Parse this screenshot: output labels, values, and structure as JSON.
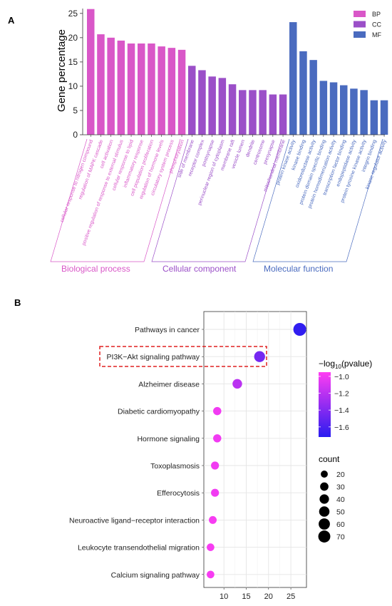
{
  "colors": {
    "BP": "#d957c8",
    "CC": "#9b4fc8",
    "MF": "#4a6bbf",
    "grid": "#e5e5e5",
    "panel_border": "#333333",
    "highlight": "#e02020"
  },
  "chart_data": [
    {
      "type": "bar",
      "panel_label": "A",
      "ylabel": "Gene percentage",
      "ylim": [
        0,
        26
      ],
      "yticks": [
        0,
        5,
        10,
        15,
        20,
        25
      ],
      "legend": {
        "placement": "top-right",
        "entries": [
          {
            "name": "BP",
            "color": "#d957c8"
          },
          {
            "name": "CC",
            "color": "#9b4fc8"
          },
          {
            "name": "MF",
            "color": "#4a6bbf"
          }
        ]
      },
      "groups": [
        {
          "key": "BP",
          "label": "Biological process",
          "color": "#d957c8",
          "bars": [
            {
              "term": "cellular response to nitrogen compound",
              "value": 25.9
            },
            {
              "term": "regulation of MAPK cascade",
              "value": 20.7
            },
            {
              "term": "cell activation",
              "value": 20.0
            },
            {
              "term": "positive regulation of response to external stimulus",
              "value": 19.4
            },
            {
              "term": "cellular response to lipid",
              "value": 18.8
            },
            {
              "term": "inflammatory response",
              "value": 18.8
            },
            {
              "term": "cell population proliferation",
              "value": 18.8
            },
            {
              "term": "regulation of hormone levels",
              "value": 18.2
            },
            {
              "term": "circulatory system process",
              "value": 17.9
            },
            {
              "term": "phosphorylation",
              "value": 17.5
            }
          ]
        },
        {
          "key": "CC",
          "label": "Cellular component",
          "color": "#9b4fc8",
          "bars": [
            {
              "term": "side of membrane",
              "value": 14.2
            },
            {
              "term": "receptor complex",
              "value": 13.3
            },
            {
              "term": "postsynapse",
              "value": 12.0
            },
            {
              "term": "perinuclear region of cytoplasm",
              "value": 11.7
            },
            {
              "term": "membrane raft",
              "value": 10.4
            },
            {
              "term": "vesicle lumen",
              "value": 9.2
            },
            {
              "term": "dendrite",
              "value": 9.2
            },
            {
              "term": "centrosome",
              "value": 9.2
            },
            {
              "term": "presynapse",
              "value": 8.3
            },
            {
              "term": "mitochondrial membrane",
              "value": 8.3
            }
          ]
        },
        {
          "key": "MF",
          "label": "Molecular function",
          "color": "#4a6bbf",
          "bars": [
            {
              "term": "protein kinase activity",
              "value": 23.2
            },
            {
              "term": "kinase binding",
              "value": 17.2
            },
            {
              "term": "oxidoreductase activity",
              "value": 15.4
            },
            {
              "term": "protein domain specific binding",
              "value": 11.1
            },
            {
              "term": "protein homodimerization activity",
              "value": 10.8
            },
            {
              "term": "transcription factor binding",
              "value": 10.2
            },
            {
              "term": "endopeptidase activity",
              "value": 9.5
            },
            {
              "term": "protein tyrosine kinase activity",
              "value": 9.2
            },
            {
              "term": "integrin binding",
              "value": 7.1
            },
            {
              "term": "kinase regulator activity",
              "value": 7.1
            }
          ]
        }
      ]
    },
    {
      "type": "scatter",
      "panel_label": "B",
      "xlim": [
        5.5,
        28.5
      ],
      "xticks": [
        10,
        15,
        20,
        25
      ],
      "grid": true,
      "highlighted": "PI3K−Akt signaling pathway",
      "color_legend": {
        "title_prefix": "−log",
        "title_sub": "10",
        "title_suffix": "(pvalue)",
        "min": -1.72,
        "max": -0.95,
        "ticks": [
          -1.0,
          -1.2,
          -1.4,
          -1.6
        ],
        "tick_labels": [
          "−1.0",
          "−1.2",
          "−1.4",
          "−1.6"
        ],
        "low_color": "#2a1cf0",
        "high_color": "#ff3df2"
      },
      "size_legend": {
        "title": "count",
        "values": [
          20,
          30,
          40,
          50,
          60,
          70
        ]
      },
      "points": [
        {
          "pathway": "Pathways in cancer",
          "count": 27,
          "neglog10p": -1.7
        },
        {
          "pathway": "PI3K−Akt signaling pathway",
          "count": 18,
          "neglog10p": -1.45
        },
        {
          "pathway": "Alzheimer disease",
          "count": 13,
          "neglog10p": -1.2
        },
        {
          "pathway": "Diabetic cardiomyopathy",
          "count": 8.5,
          "neglog10p": -1.0
        },
        {
          "pathway": "Hormone signaling",
          "count": 8.5,
          "neglog10p": -1.0
        },
        {
          "pathway": "Toxoplasmosis",
          "count": 8,
          "neglog10p": -1.0
        },
        {
          "pathway": "Efferocytosis",
          "count": 8,
          "neglog10p": -1.0
        },
        {
          "pathway": "Neuroactive ligand−receptor interaction",
          "count": 7.5,
          "neglog10p": -0.98
        },
        {
          "pathway": "Leukocyte transendothelial migration",
          "count": 7,
          "neglog10p": -0.98
        },
        {
          "pathway": "Calcium signaling pathway",
          "count": 7,
          "neglog10p": -0.98
        }
      ]
    }
  ]
}
